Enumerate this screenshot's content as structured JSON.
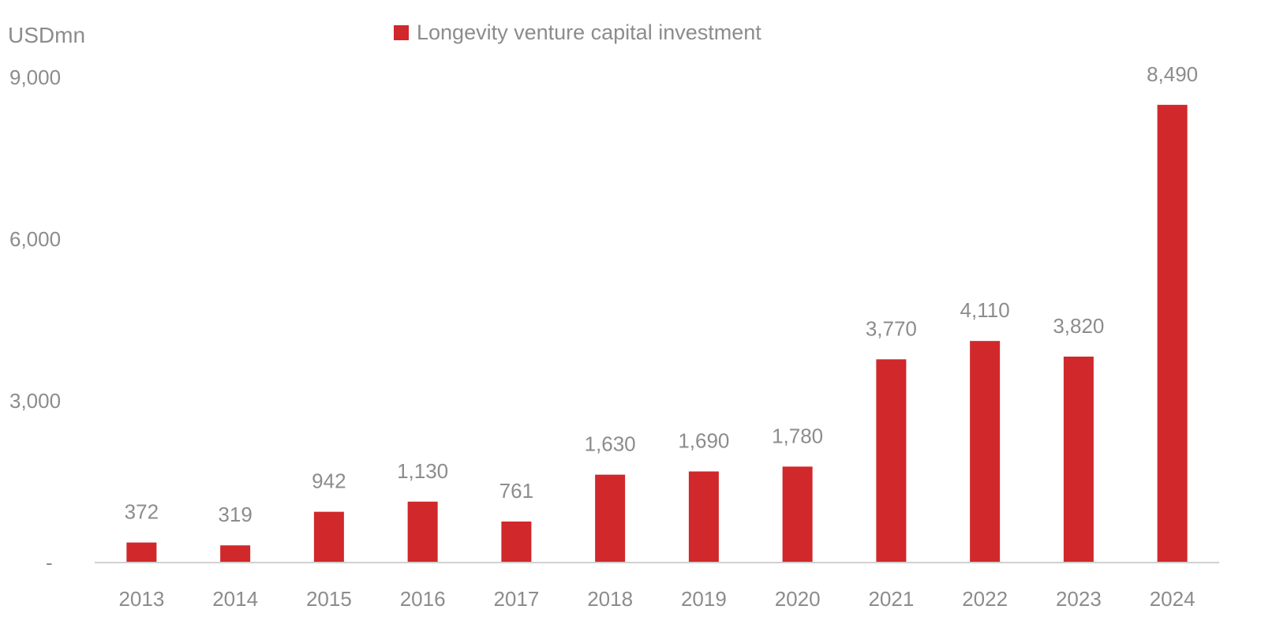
{
  "chart_data": {
    "type": "bar",
    "unit_label": "USDmn",
    "categories": [
      "2013",
      "2014",
      "2015",
      "2016",
      "2017",
      "2018",
      "2019",
      "2020",
      "2021",
      "2022",
      "2023",
      "2024"
    ],
    "series": [
      {
        "name": "Longevity venture capital investment",
        "color": "#d0282b",
        "values": [
          372,
          319,
          942,
          1130,
          761,
          1630,
          1690,
          1780,
          3770,
          4110,
          3820,
          8490
        ],
        "value_labels": [
          "372",
          "319",
          "942",
          "1,130",
          "761",
          "1,630",
          "1,690",
          "1,780",
          "3,770",
          "4,110",
          "3,820",
          "8,490"
        ]
      }
    ],
    "ylim": [
      0,
      9000
    ],
    "y_ticks": [
      0,
      3000,
      6000,
      9000
    ],
    "y_tick_labels": [
      "-",
      "3,000",
      "6,000",
      "9,000"
    ],
    "legend_position": "top-center",
    "grid": false
  }
}
